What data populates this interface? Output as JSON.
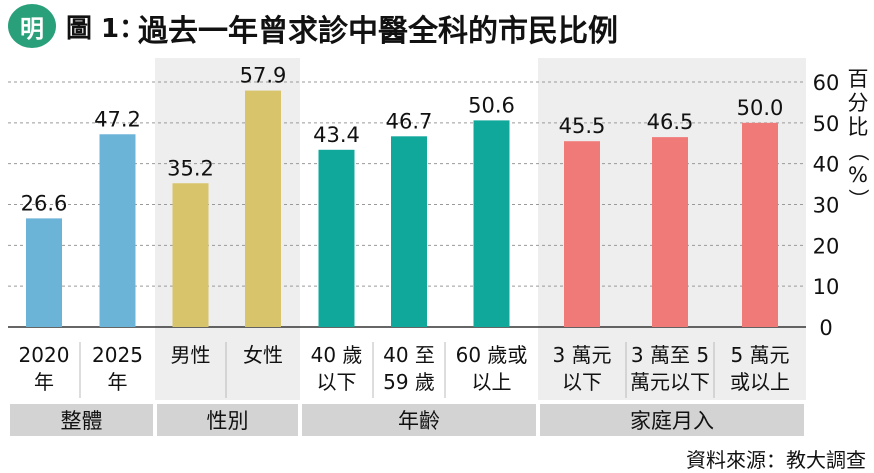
{
  "header": {
    "logo_char": "明",
    "figure_label": "圖 1：",
    "title": "過去一年曾求診中醫全科的市民比例"
  },
  "source": "資料來源：教大調查",
  "chart_data": {
    "type": "bar",
    "ylabel": "百分比（%）",
    "ylim": [
      0,
      60
    ],
    "yticks": [
      0,
      10,
      20,
      30,
      40,
      50,
      60
    ],
    "grid": true,
    "groups": [
      {
        "name": "整體",
        "color": "#6cb3d8",
        "shaded": false,
        "categories": [
          [
            "2020",
            "年"
          ],
          [
            "2025",
            "年"
          ]
        ],
        "values": [
          26.6,
          47.2
        ]
      },
      {
        "name": "性別",
        "color": "#d8c46a",
        "shaded": true,
        "categories": [
          [
            "男性"
          ],
          [
            "女性"
          ]
        ],
        "values": [
          35.2,
          57.9
        ]
      },
      {
        "name": "年齡",
        "color": "#11a89c",
        "shaded": false,
        "categories": [
          [
            "40 歲",
            "以下"
          ],
          [
            "40 至",
            "59 歲"
          ],
          [
            "60 歲或",
            "以上"
          ]
        ],
        "values": [
          43.4,
          46.7,
          50.6
        ]
      },
      {
        "name": "家庭月入",
        "color": "#ef7a77",
        "shaded": true,
        "categories": [
          [
            "3 萬元",
            "以下"
          ],
          [
            "3 萬至 5",
            "萬元以下"
          ],
          [
            "5 萬元",
            "或以上"
          ]
        ],
        "values": [
          45.5,
          46.5,
          50.0
        ]
      }
    ]
  }
}
